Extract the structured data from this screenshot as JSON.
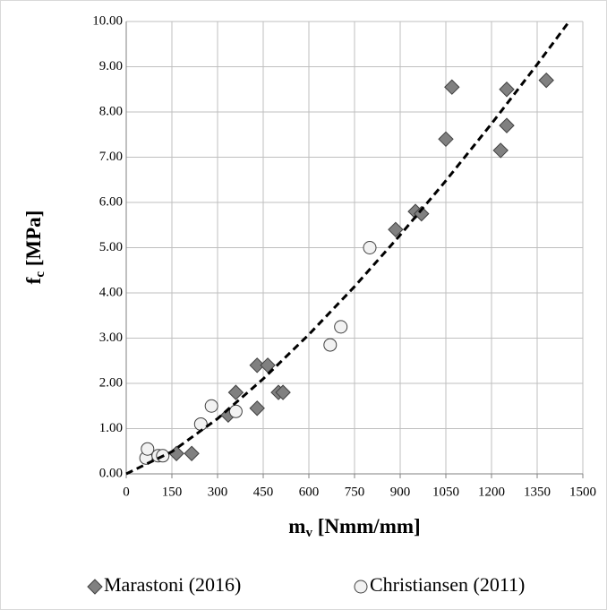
{
  "chart_data": {
    "type": "scatter",
    "x_label": {
      "main": "m",
      "sub": "v",
      "unit": " [Nmm/mm]"
    },
    "y_label": {
      "main": "f",
      "sub": "c",
      "unit": " [MPa]"
    },
    "xlim": [
      0,
      1500
    ],
    "ylim": [
      0,
      10
    ],
    "xticks": [
      0,
      150,
      300,
      450,
      600,
      750,
      900,
      1050,
      1200,
      1350,
      1500
    ],
    "yticks": [
      {
        "value": 0,
        "label": "0.00"
      },
      {
        "value": 1,
        "label": "1.00"
      },
      {
        "value": 2,
        "label": "2.00"
      },
      {
        "value": 3,
        "label": "3.00"
      },
      {
        "value": 4,
        "label": "4.00"
      },
      {
        "value": 5,
        "label": "5.00"
      },
      {
        "value": 6,
        "label": "6.00"
      },
      {
        "value": 7,
        "label": "7.00"
      },
      {
        "value": 8,
        "label": "8.00"
      },
      {
        "value": 9,
        "label": "9.00"
      },
      {
        "value": 10,
        "label": "10.00"
      }
    ],
    "grid": true,
    "series": [
      {
        "name": "Marastoni (2016)",
        "marker": "diamond",
        "color": "#808080",
        "x": [
          165,
          215,
          335,
          360,
          430,
          430,
          465,
          500,
          515,
          885,
          950,
          970,
          1050,
          1070,
          1230,
          1250,
          1250,
          1380
        ],
        "values": [
          0.45,
          0.45,
          1.3,
          1.8,
          1.45,
          2.4,
          2.4,
          1.8,
          1.8,
          5.4,
          5.8,
          5.75,
          7.4,
          8.55,
          7.15,
          7.7,
          8.5,
          8.7
        ]
      },
      {
        "name": "Christiansen (2011)",
        "marker": "circle",
        "color": "#f2f2f2",
        "x": [
          65,
          70,
          105,
          120,
          245,
          280,
          360,
          670,
          705,
          800
        ],
        "values": [
          0.35,
          0.55,
          0.4,
          0.4,
          1.1,
          1.5,
          1.38,
          2.85,
          3.25,
          5.0
        ]
      }
    ],
    "trend": {
      "color": "#000000",
      "x": [
        0,
        150,
        300,
        450,
        600,
        750,
        900,
        1050,
        1200,
        1350,
        1455
      ],
      "y": [
        0,
        0.49,
        1.22,
        2.1,
        3.08,
        4.14,
        5.28,
        6.48,
        7.74,
        9.05,
        10
      ]
    }
  }
}
